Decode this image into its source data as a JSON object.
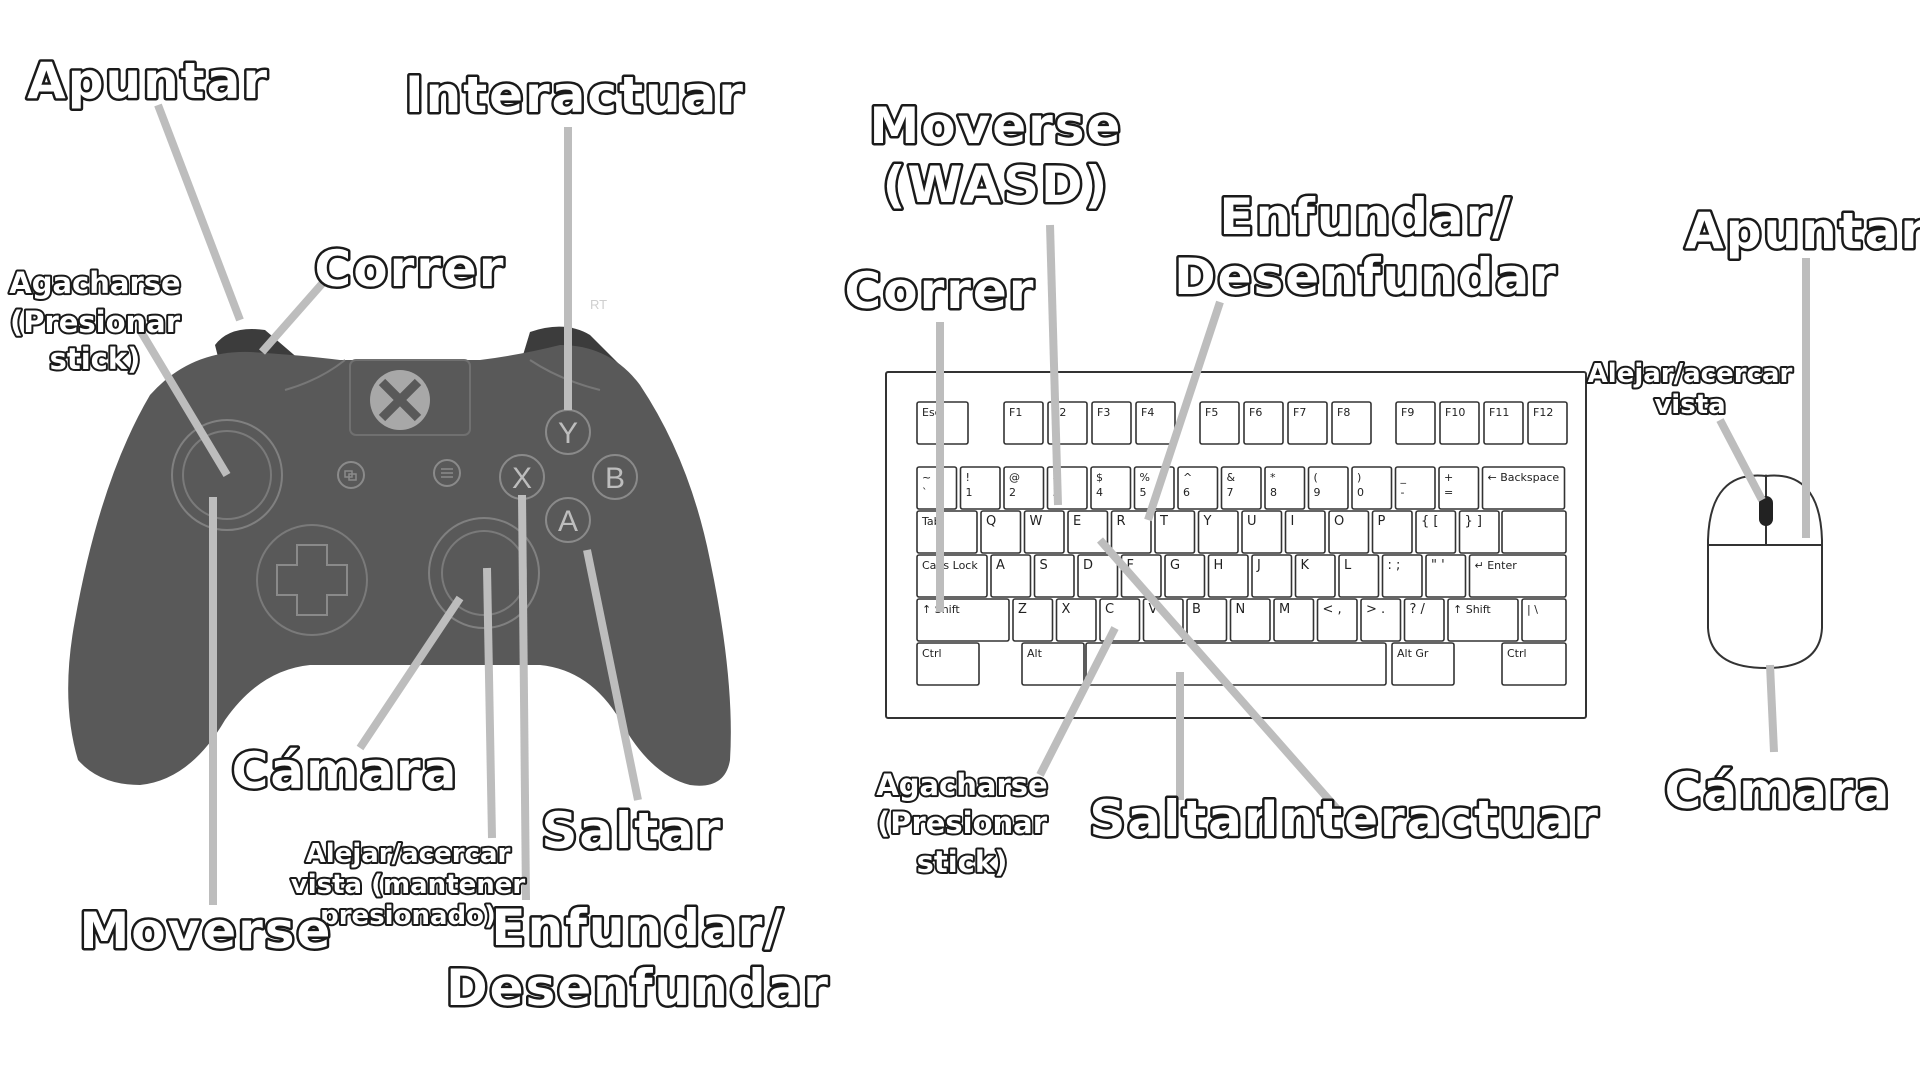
{
  "controller": {
    "labels": {
      "aim": "Apuntar",
      "interact": "Interactuar",
      "crouch": [
        "Agacharse",
        "(Presionar",
        "stick)"
      ],
      "run": "Correr",
      "camera": "Cámara",
      "jump": "Saltar",
      "zoom": [
        "Alejar/acercar",
        "vista (mantener",
        "presionado)"
      ],
      "move": "Moverse",
      "holster": [
        "Enfundar/",
        "Desenfundar"
      ],
      "rt_hint": "RT"
    },
    "buttons": {
      "y": "Y",
      "x": "X",
      "b": "B",
      "a": "A"
    }
  },
  "keyboard": {
    "labels": {
      "move": [
        "Moverse",
        "(WASD)"
      ],
      "holster": [
        "Enfundar/",
        "Desenfundar"
      ],
      "run": "Correr",
      "crouch": [
        "Agacharse",
        "(Presionar",
        "stick)"
      ],
      "jump": "Saltar",
      "interact": "Interactuar"
    },
    "fn_row": [
      "Esc",
      "F1",
      "F2",
      "F3",
      "F4",
      "F5",
      "F6",
      "F7",
      "F8",
      "F9",
      "F10",
      "F11",
      "F12"
    ],
    "num_row": [
      [
        "~",
        "`"
      ],
      [
        "!",
        "1"
      ],
      [
        "@",
        "2"
      ],
      [
        "#",
        "3"
      ],
      [
        "$",
        "4"
      ],
      [
        "%",
        "5"
      ],
      [
        "^",
        "6"
      ],
      [
        "&",
        "7"
      ],
      [
        "*",
        "8"
      ],
      [
        "(",
        "9"
      ],
      [
        ")",
        "0"
      ],
      [
        "_",
        "-"
      ],
      [
        "+",
        "="
      ],
      [
        "← Backspace",
        ""
      ]
    ],
    "tab_row": [
      "Tab",
      "Q",
      "W",
      "E",
      "R",
      "T",
      "Y",
      "U",
      "I",
      "O",
      "P",
      "{ [",
      "} ]"
    ],
    "caps_row": [
      "Caps Lock",
      "A",
      "S",
      "D",
      "F",
      "G",
      "H",
      "J",
      "K",
      "L",
      ": ;",
      "\" '",
      "↵ Enter"
    ],
    "shift_row": [
      "↑ Shift",
      "Z",
      "X",
      "C",
      "V",
      "B",
      "N",
      "M",
      "< ,",
      "> .",
      "? /",
      "↑ Shift",
      "| \\"
    ],
    "bottom_row": [
      "Ctrl",
      "Alt",
      "Alt Gr",
      "Ctrl"
    ]
  },
  "mouse": {
    "labels": {
      "aim": "Apuntar",
      "zoom": [
        "Alejar/acercar",
        "vista"
      ],
      "camera": "Cámara"
    }
  }
}
